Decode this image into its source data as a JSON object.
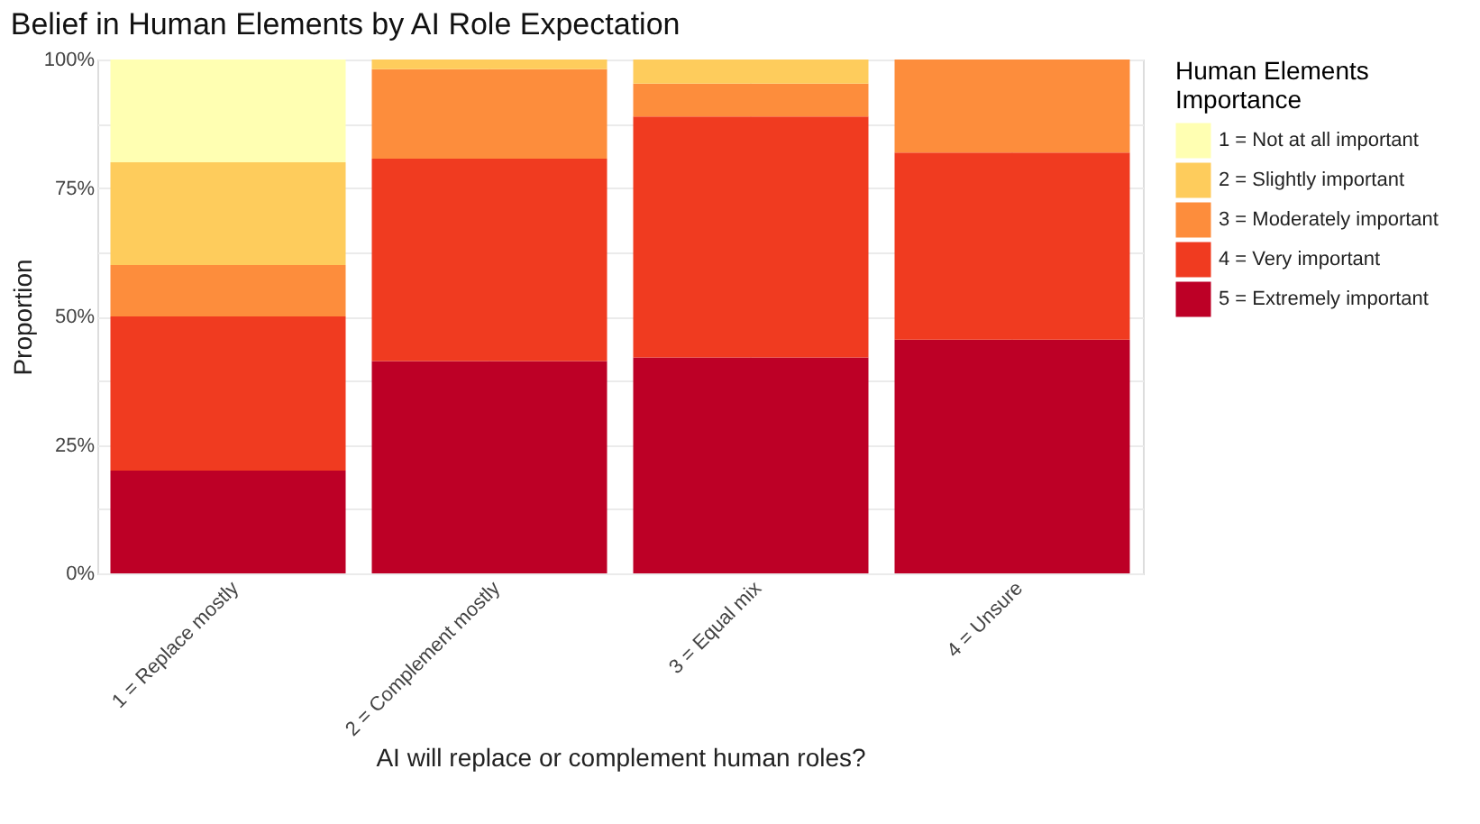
{
  "chart_data": {
    "type": "bar",
    "stacked": true,
    "title": "Belief in Human Elements by AI Role Expectation",
    "xlabel": "AI will replace or complement human roles?",
    "ylabel": "Proportion",
    "legend_title": "Human Elements Importance",
    "legend": "right",
    "grid": true,
    "categories": [
      "1 = Replace mostly",
      "2 = Complement mostly",
      "3 = Equal mix",
      "4 = Unsure"
    ],
    "ylim": [
      0,
      100
    ],
    "yticks": [
      {
        "value": 0,
        "label": "0%"
      },
      {
        "value": 12.5,
        "label": null
      },
      {
        "value": 25,
        "label": "25%"
      },
      {
        "value": 37.5,
        "label": null
      },
      {
        "value": 50,
        "label": "50%"
      },
      {
        "value": 62.5,
        "label": null
      },
      {
        "value": 75,
        "label": "75%"
      },
      {
        "value": 87.5,
        "label": null
      },
      {
        "value": 100,
        "label": "100%"
      }
    ],
    "series": [
      {
        "name": "5 = Extremely important",
        "color": "#bd0026",
        "values": [
          20,
          41.3,
          42,
          45.5
        ]
      },
      {
        "name": "4 = Very important",
        "color": "#f03b20",
        "values": [
          30,
          39.4,
          46.9,
          36.4
        ]
      },
      {
        "name": "3 = Moderately important",
        "color": "#fd8d3c",
        "values": [
          10,
          17.4,
          6.4,
          18.1
        ]
      },
      {
        "name": "2 = Slightly important",
        "color": "#fecc5c",
        "values": [
          20,
          1.9,
          4.7,
          0
        ]
      },
      {
        "name": "1 = Not at all important",
        "color": "#ffffb2",
        "values": [
          20,
          0,
          0,
          0
        ]
      }
    ]
  }
}
